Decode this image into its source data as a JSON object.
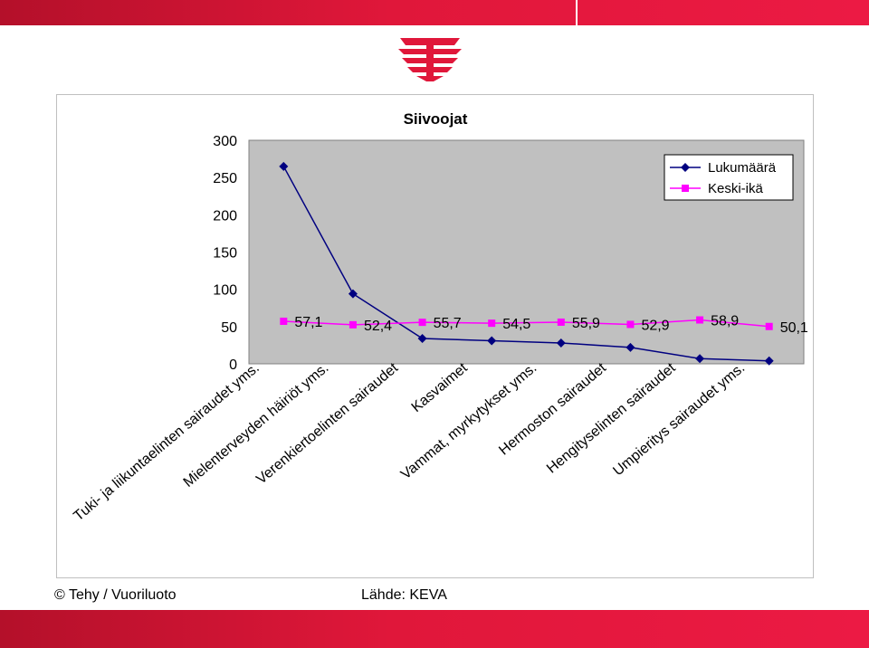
{
  "footer": {
    "copyright": "© Tehy / Vuoriluoto",
    "source": "Lähde: KEVA"
  },
  "colors": {
    "brand_red": "#e0173a",
    "plot_background": "#c0c0c0",
    "series_count": "#000080",
    "series_age": "#ff00ff"
  },
  "chart_data": {
    "type": "line",
    "title": "Siivoojat",
    "categories": [
      "Tuki- ja liikuntaelinten sairaudet yms.",
      "Mielenterveyden häiriöt yms.",
      "Verenkiertoelinten sairaudet",
      "Kasvaimet",
      "Vammat, myrkytykset yms.",
      "Hermoston sairaudet",
      "Hengityselinten sairaudet",
      "Umpieritys sairaudet yms."
    ],
    "series": [
      {
        "name": "Lukumäärä",
        "marker": "diamond",
        "color": "#000080",
        "values": [
          265,
          94,
          34,
          31,
          28,
          22,
          7,
          4
        ]
      },
      {
        "name": "Keski-ikä",
        "marker": "square",
        "color": "#ff00ff",
        "values": [
          57.1,
          52.4,
          55.7,
          54.5,
          55.9,
          52.9,
          58.9,
          50.1
        ],
        "data_labels": [
          "57,1",
          "52,4",
          "55,7",
          "54,5",
          "55,9",
          "52,9",
          "58,9",
          "50,1"
        ]
      }
    ],
    "ylim": [
      0,
      300
    ],
    "yticks": [
      0,
      50,
      100,
      150,
      200,
      250,
      300
    ],
    "grid": false,
    "legend": "top-right"
  }
}
